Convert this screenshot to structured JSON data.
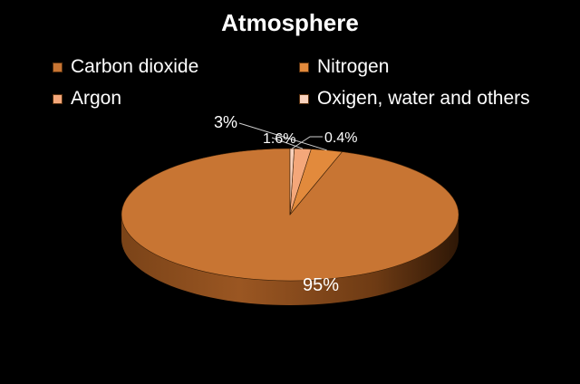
{
  "chart_data": {
    "type": "pie",
    "title": "Atmosphere",
    "categories": [
      "Carbon dioxide",
      "Nitrogen",
      "Argon",
      "Oxigen, water and others"
    ],
    "values": [
      95,
      3,
      1.6,
      0.4
    ],
    "labels": [
      "95%",
      "3%",
      "1.6%",
      "0.4%"
    ],
    "colors": [
      "#c87533",
      "#e28a3c",
      "#f4a77a",
      "#fad2bd"
    ],
    "legend_position": "top",
    "three_d": true
  }
}
